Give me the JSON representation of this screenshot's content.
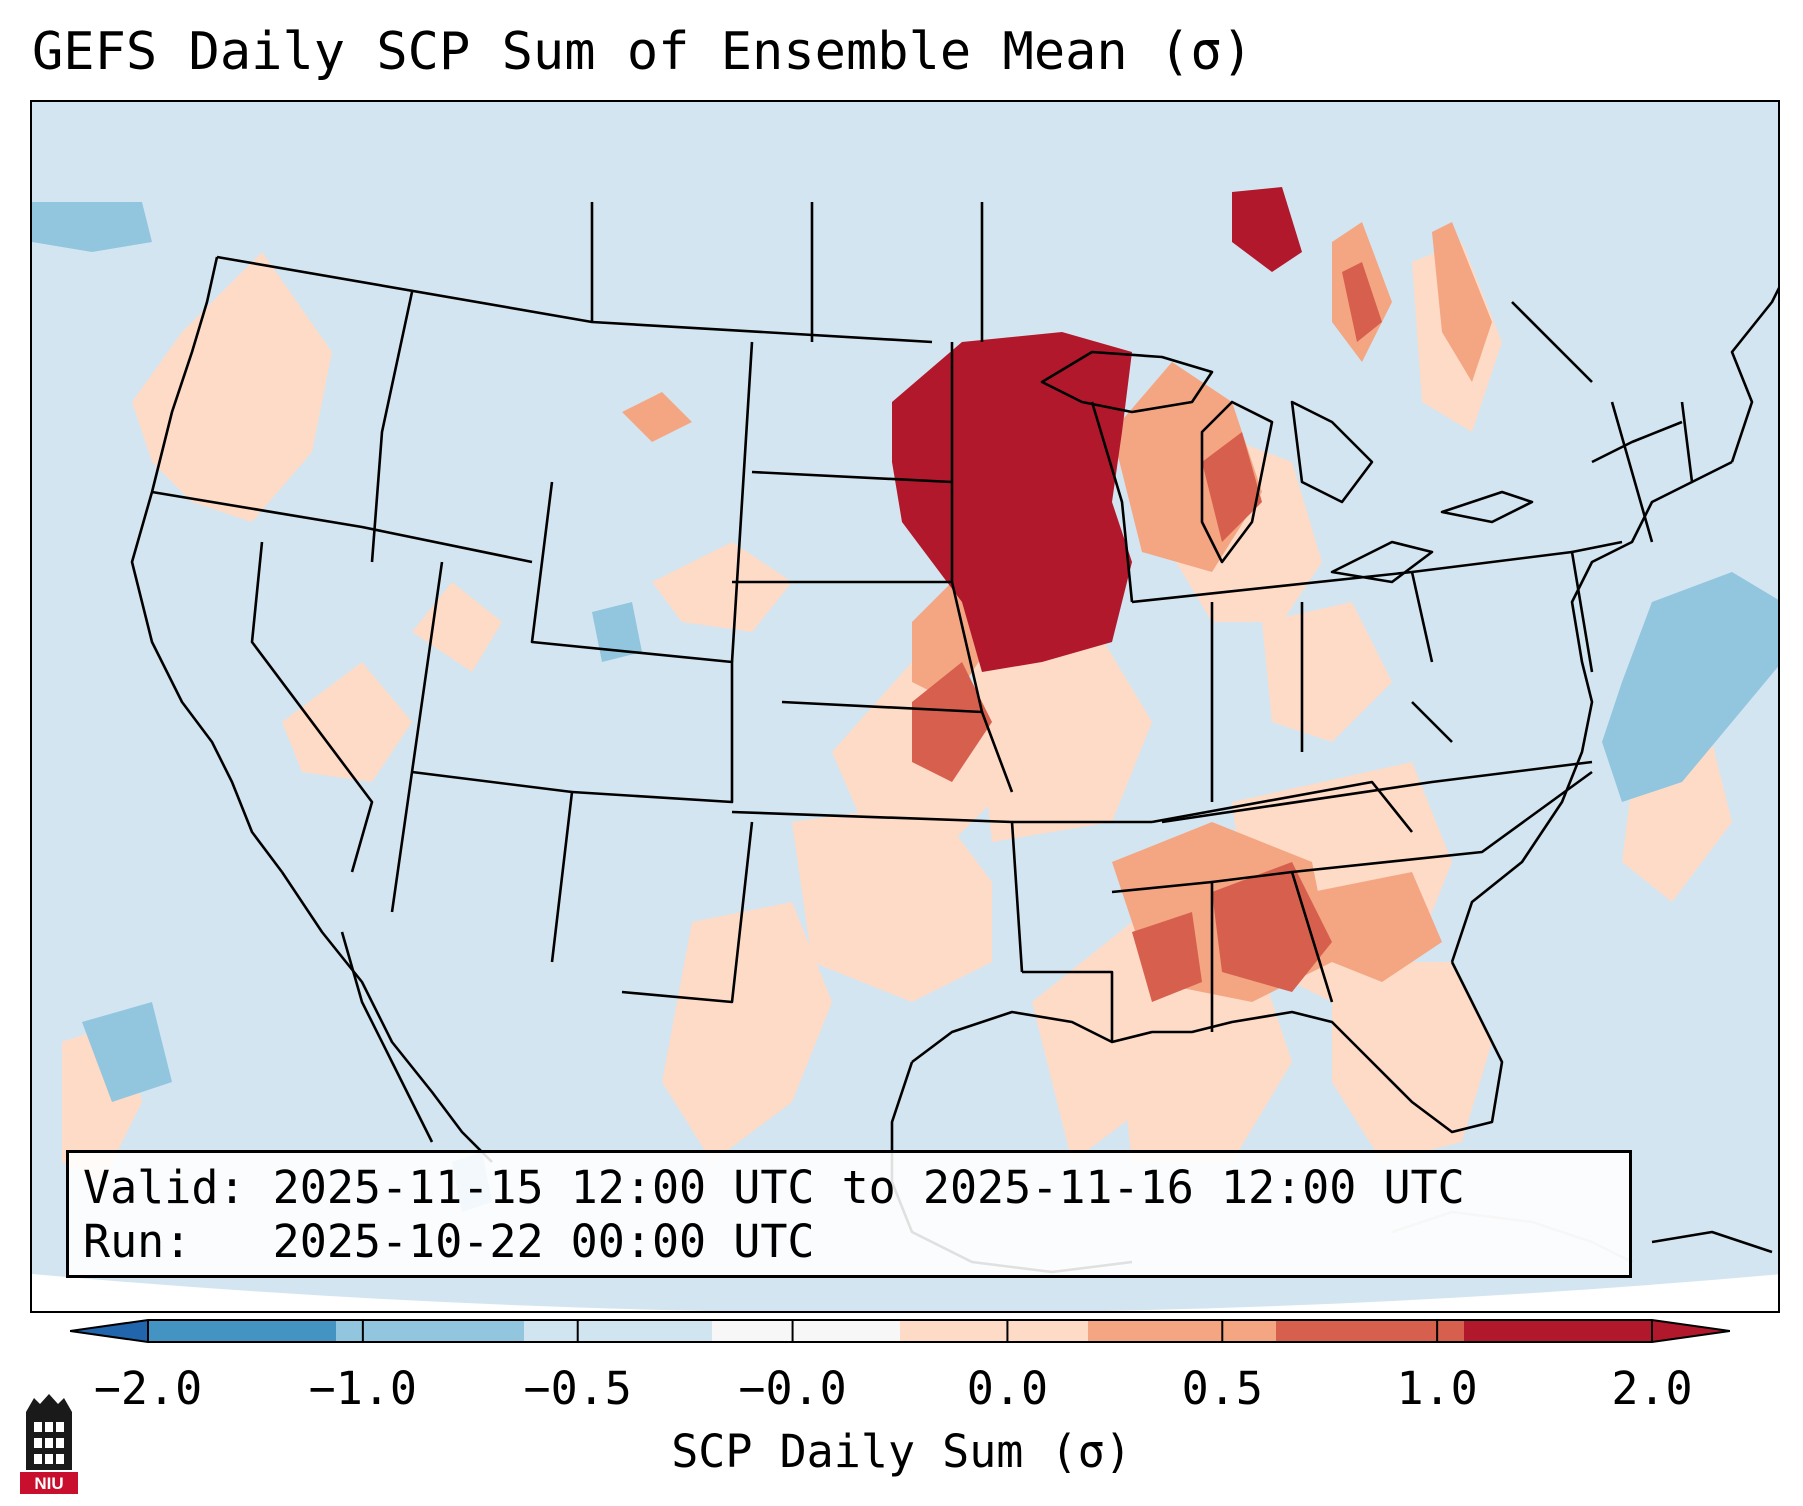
{
  "title": "GEFS Daily SCP Sum of Ensemble Mean (σ)",
  "info": {
    "valid_label": "Valid:",
    "valid_range": "2025-11-15 12:00 UTC to 2025-11-16 12:00 UTC",
    "run_label": "Run:",
    "run_time": "2025-10-22 00:00 UTC"
  },
  "colorbar": {
    "label": "SCP Daily Sum (σ)",
    "ticks": [
      "−2.0",
      "−1.0",
      "−0.5",
      "−0.0",
      "0.0",
      "0.5",
      "1.0",
      "2.0"
    ],
    "colors": [
      "#4393c3",
      "#92c5de",
      "#d1e5f0",
      "#f7f7f7",
      "#fddbc7",
      "#f4a582",
      "#d6604d",
      "#b2182b"
    ],
    "under_color": "#2166ac",
    "over_color": "#b2182b"
  },
  "logo": {
    "text": "NIU",
    "icon": "university-tower-icon",
    "colors": {
      "tower": "#1a1a1a",
      "badge": "#c8102e"
    }
  },
  "map": {
    "background_color": "#d1e5f0",
    "outside_domain_color": "#ffffff"
  }
}
